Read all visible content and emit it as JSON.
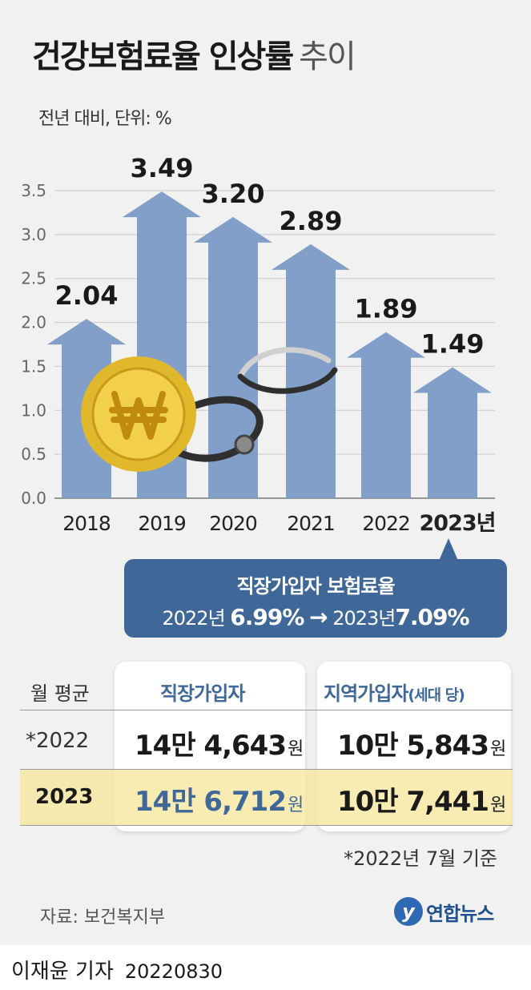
{
  "header": {
    "title_bold": "건강보험료율 인상률",
    "title_light": "추이",
    "subtitle": "전년 대비, 단위: %"
  },
  "chart_data": {
    "type": "bar",
    "categories": [
      "2018",
      "2019",
      "2020",
      "2021",
      "2022",
      "2023년"
    ],
    "values": [
      2.04,
      3.49,
      3.2,
      2.89,
      1.89,
      1.49
    ],
    "value_labels": [
      "2.04",
      "3.49",
      "3.20",
      "2.89",
      "1.89",
      "1.49"
    ],
    "y_ticks": [
      "0.0",
      "0.5",
      "1.0",
      "1.5",
      "2.0",
      "2.5",
      "3.0",
      "3.5"
    ],
    "ylim": [
      0,
      3.5
    ],
    "grid": true,
    "bar_shape": "arrow",
    "bar_color": "#7b9ac7",
    "highlight_category": "2023년"
  },
  "callout": {
    "title": "직장가입자 보험료율",
    "from_year": "2022년",
    "from_value": "6.99%",
    "arrow": "→",
    "to_year": "2023년",
    "to_value": "7.09%"
  },
  "table": {
    "row_header_label": "월 평균",
    "col1_header": "직장가입자",
    "col2_header": "지역가입자",
    "col2_header_note": "(세대 당)",
    "unit": "원",
    "rows": [
      {
        "year": "*2022",
        "col1": "14만 4,643",
        "col2": "10만 5,843"
      },
      {
        "year": "2023",
        "col1": "14만 6,712",
        "col2": "10만 7,441"
      }
    ],
    "note": "*2022년 7월 기준"
  },
  "source": "자료: 보건복지부",
  "logo_text": "연합뉴스",
  "logo_mark": "y",
  "footer": {
    "reporter": "이재윤 기자",
    "date": "20220830"
  }
}
